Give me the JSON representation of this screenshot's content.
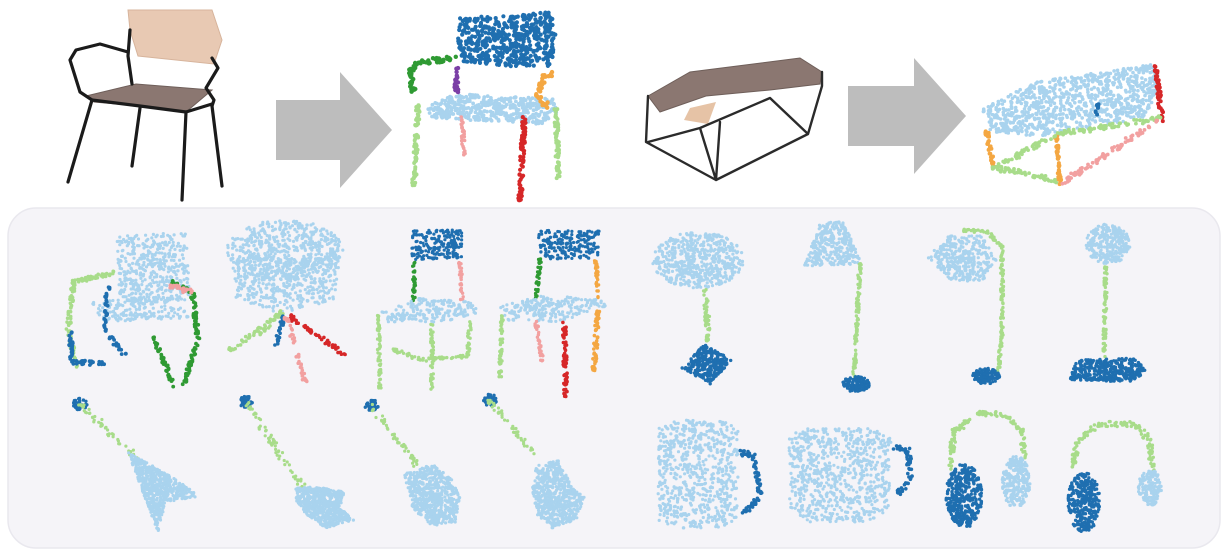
{
  "figure": {
    "caption": "",
    "palette": {
      "light_blue": "#a9d3ee",
      "dark_blue": "#1f6fb0",
      "light_green": "#a8dc8a",
      "dark_green": "#2f9a33",
      "pink": "#f2a0a0",
      "red": "#d62728",
      "orange": "#f4a742",
      "purple": "#7b3fa6",
      "surface_tan": "#e7c9b4",
      "surface_brown": "#8a7570",
      "arrow_gray": "#bdbdbd"
    },
    "top_row": [
      {
        "id": "chair-input",
        "kind": "wireframe-with-surface",
        "shape": "chair"
      },
      {
        "id": "arrow-1",
        "kind": "arrow"
      },
      {
        "id": "chair-output",
        "kind": "segmented-point-cloud",
        "shape": "chair"
      },
      {
        "id": "table-input",
        "kind": "wireframe-with-surface",
        "shape": "table"
      },
      {
        "id": "arrow-2",
        "kind": "arrow"
      },
      {
        "id": "table-output",
        "kind": "segmented-point-cloud",
        "shape": "table"
      }
    ],
    "gallery": {
      "rows": [
        [
          "chair",
          "swivel-chair",
          "cantilever-chair",
          "chair",
          "table-lamp",
          "floor-lamp",
          "desk-lamp",
          "desk-lamp"
        ],
        [
          "guitar",
          "guitar",
          "guitar",
          "guitar",
          "mug",
          "mug",
          "headphones",
          "headphones"
        ]
      ]
    }
  }
}
